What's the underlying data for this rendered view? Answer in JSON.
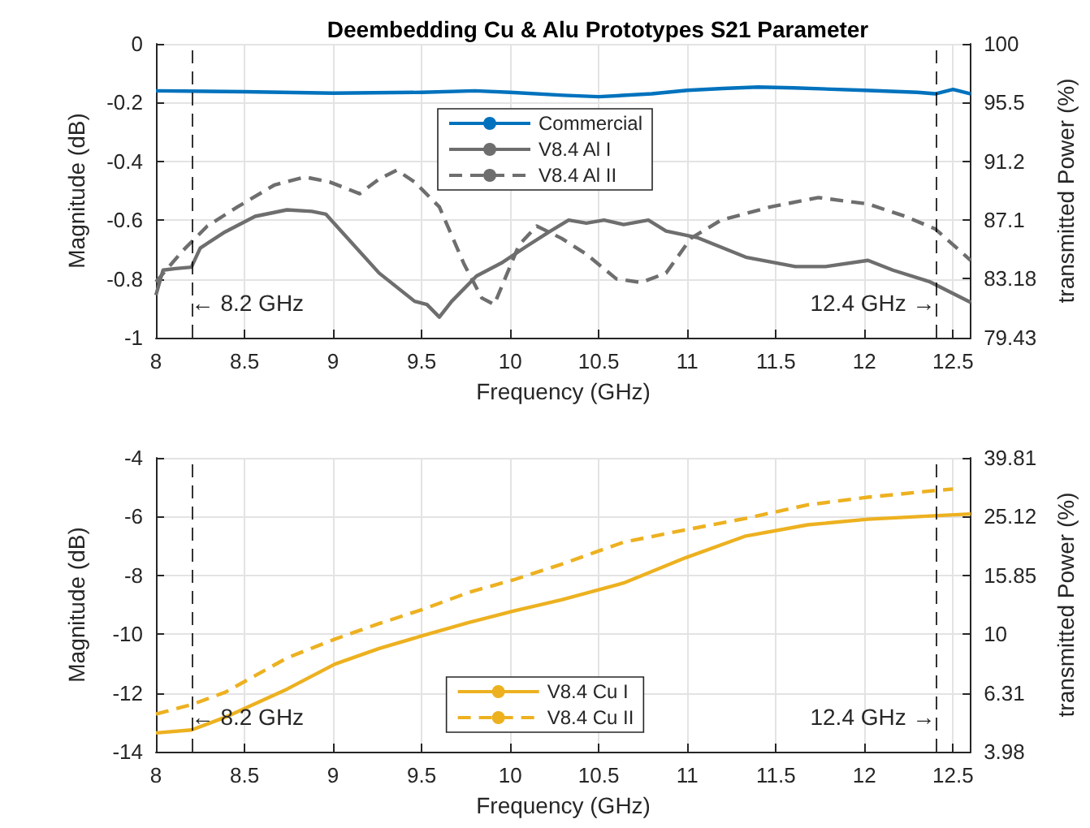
{
  "chart_data": [
    {
      "type": "line",
      "title": "Deembedding Cu & Alu Prototypes S21 Parameter",
      "xlabel": "Frequency (GHz)",
      "ylabel": "Magnitude (dB)",
      "y2label": "transmitted Power (%)",
      "xlim": [
        8,
        12.6
      ],
      "xticks": [
        8,
        8.5,
        9,
        9.5,
        10,
        10.5,
        11,
        11.5,
        12,
        12.5
      ],
      "ylim": [
        -1,
        0
      ],
      "yticks": [
        -1,
        -0.8,
        -0.6,
        -0.4,
        -0.2,
        0
      ],
      "y2lim": [
        79.43,
        100
      ],
      "y2ticks": [
        79.43,
        83.18,
        87.1,
        91.2,
        95.5,
        100
      ],
      "log": "y2",
      "grid": true,
      "legend": "top",
      "ref_lines": [
        {
          "axis": "x",
          "value": 8.2,
          "label": "← 8.2 GHz",
          "color": "#000000",
          "line_style": "dashed"
        },
        {
          "axis": "x",
          "value": 12.4,
          "label": "12.4 GHz →",
          "color": "#000000",
          "line_style": "dashed"
        }
      ],
      "series": [
        {
          "name": "Commercial",
          "color": "#0072bd",
          "line_style": "solid",
          "x": [
            8,
            8.5,
            9,
            9.5,
            9.8,
            10,
            10.3,
            10.5,
            10.8,
            11,
            11.2,
            11.4,
            11.6,
            12,
            12.3,
            12.4,
            12.5,
            12.6
          ],
          "values": [
            -0.16,
            -0.163,
            -0.168,
            -0.165,
            -0.16,
            -0.165,
            -0.175,
            -0.18,
            -0.17,
            -0.158,
            -0.152,
            -0.147,
            -0.15,
            -0.158,
            -0.165,
            -0.17,
            -0.155,
            -0.17
          ]
        },
        {
          "name": "V8.4 Al I",
          "color": "#6e6e6e",
          "line_style": "solid",
          "x": [
            8,
            8.04,
            8.11,
            8.2,
            8.25,
            8.39,
            8.56,
            8.74,
            8.88,
            8.96,
            9.05,
            9.26,
            9.46,
            9.53,
            9.6,
            9.67,
            9.81,
            9.95,
            10.09,
            10.22,
            10.33,
            10.43,
            10.53,
            10.64,
            10.78,
            10.88,
            11.06,
            11.33,
            11.61,
            11.78,
            12.02,
            12.16,
            12.37,
            12.6
          ],
          "values": [
            -0.855,
            -0.77,
            -0.765,
            -0.76,
            -0.695,
            -0.64,
            -0.587,
            -0.565,
            -0.57,
            -0.58,
            -0.64,
            -0.78,
            -0.876,
            -0.887,
            -0.93,
            -0.876,
            -0.79,
            -0.746,
            -0.69,
            -0.64,
            -0.6,
            -0.61,
            -0.6,
            -0.615,
            -0.6,
            -0.637,
            -0.66,
            -0.726,
            -0.758,
            -0.758,
            -0.737,
            -0.77,
            -0.81,
            -0.88
          ]
        },
        {
          "name": "V8.4 Al II",
          "color": "#6e6e6e",
          "line_style": "dashed",
          "x": [
            8,
            8.15,
            8.29,
            8.46,
            8.67,
            8.84,
            8.98,
            9.15,
            9.26,
            9.36,
            9.46,
            9.6,
            9.74,
            9.84,
            9.91,
            10.05,
            10.15,
            10.29,
            10.43,
            10.6,
            10.74,
            10.88,
            11.02,
            11.19,
            11.47,
            11.74,
            12.02,
            12.23,
            12.4,
            12.6
          ],
          "values": [
            -0.81,
            -0.705,
            -0.62,
            -0.555,
            -0.48,
            -0.453,
            -0.47,
            -0.51,
            -0.46,
            -0.43,
            -0.47,
            -0.555,
            -0.75,
            -0.865,
            -0.887,
            -0.684,
            -0.62,
            -0.662,
            -0.716,
            -0.8,
            -0.812,
            -0.78,
            -0.662,
            -0.6,
            -0.555,
            -0.523,
            -0.545,
            -0.587,
            -0.63,
            -0.737
          ]
        }
      ]
    },
    {
      "type": "line",
      "xlabel": "Frequency (GHz)",
      "ylabel": "Magnitude (dB)",
      "y2label": "transmitted Power (%)",
      "xlim": [
        8,
        12.6
      ],
      "xticks": [
        8,
        8.5,
        9,
        9.5,
        10,
        10.5,
        11,
        11.5,
        12,
        12.5
      ],
      "ylim": [
        -14,
        -4
      ],
      "yticks": [
        -14,
        -12,
        -10,
        -8,
        -6,
        -4
      ],
      "y2lim": [
        3.98,
        39.81
      ],
      "y2ticks": [
        3.98,
        6.31,
        10,
        15.85,
        25.12,
        39.81
      ],
      "log": "y2",
      "grid": true,
      "legend": "bottom",
      "ref_lines": [
        {
          "axis": "x",
          "value": 8.2,
          "label": "← 8.2 GHz",
          "color": "#000000",
          "line_style": "dashed"
        },
        {
          "axis": "x",
          "value": 12.4,
          "label": "12.4 GHz →",
          "color": "#000000",
          "line_style": "dashed"
        }
      ],
      "series": [
        {
          "name": "V8.4 Cu I",
          "color": "#edb120",
          "line_style": "solid",
          "x": [
            8,
            8.2,
            8.39,
            8.74,
            9.01,
            9.26,
            9.5,
            9.77,
            10.02,
            10.29,
            10.64,
            10.99,
            11.33,
            11.68,
            12.02,
            12.37,
            12.6
          ],
          "values": [
            -13.36,
            -13.26,
            -12.83,
            -11.87,
            -11.02,
            -10.49,
            -10.06,
            -9.6,
            -9.21,
            -8.83,
            -8.26,
            -7.4,
            -6.66,
            -6.28,
            -6.09,
            -5.98,
            -5.91
          ]
        },
        {
          "name": "V8.4 Cu II",
          "color": "#edb120",
          "line_style": "dashed",
          "x": [
            8,
            8.2,
            8.39,
            8.74,
            9.01,
            9.26,
            9.5,
            9.77,
            10.02,
            10.29,
            10.64,
            10.99,
            11.33,
            11.68,
            12.02,
            12.37,
            12.5
          ],
          "values": [
            -12.72,
            -12.4,
            -11.98,
            -10.81,
            -10.17,
            -9.64,
            -9.17,
            -8.57,
            -8.15,
            -7.62,
            -6.87,
            -6.45,
            -6.06,
            -5.6,
            -5.34,
            -5.13,
            -5.06
          ]
        }
      ]
    }
  ]
}
